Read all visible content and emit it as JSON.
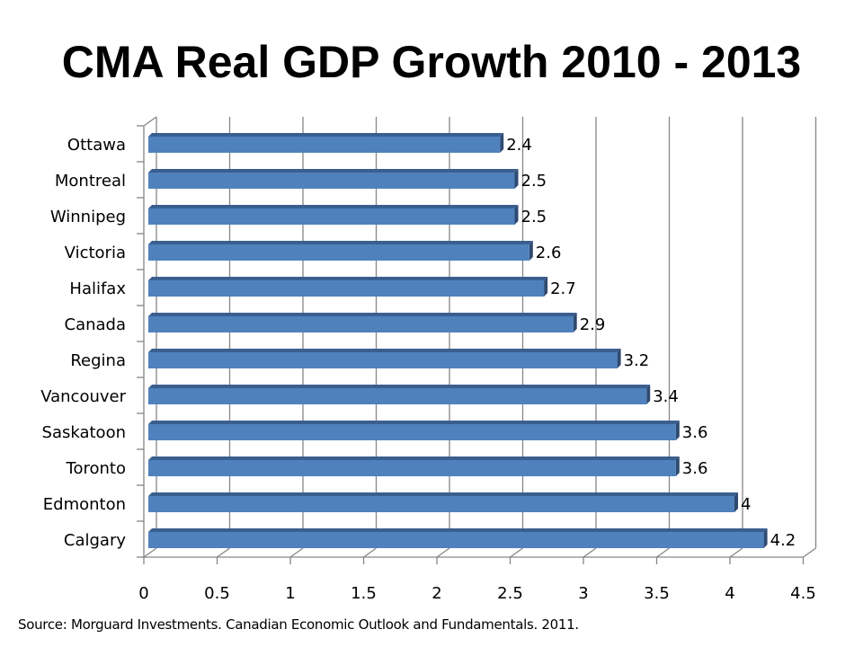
{
  "chart_data": {
    "type": "bar",
    "orientation": "horizontal",
    "style": "3d",
    "title": "CMA Real GDP Growth 2010 - 2013",
    "categories": [
      "Ottawa",
      "Montreal",
      "Winnipeg",
      "Victoria",
      "Halifax",
      "Canada",
      "Regina",
      "Vancouver",
      "Saskatoon",
      "Toronto",
      "Edmonton",
      "Calgary"
    ],
    "values": [
      2.4,
      2.5,
      2.5,
      2.6,
      2.7,
      2.9,
      3.2,
      3.4,
      3.6,
      3.6,
      4,
      4.2
    ],
    "data_labels": [
      "2.4",
      "2.5",
      "2.5",
      "2.6",
      "2.7",
      "2.9",
      "3.2",
      "3.4",
      "3.6",
      "3.6",
      "4",
      "4.2"
    ],
    "xlim": [
      0,
      4.5
    ],
    "xticks": [
      "0",
      "0.5",
      "1",
      "1.5",
      "2",
      "2.5",
      "3",
      "3.5",
      "4",
      "4.5"
    ],
    "xlabel": "",
    "ylabel": "",
    "grid": true,
    "legend": "none",
    "colors": {
      "bar": "#4F81BD",
      "bar_top": "#3A5F8F",
      "bar_side": "#2E4A70",
      "grid": "#868686"
    }
  },
  "source": "Source: Morguard Investments. Canadian Economic Outlook and Fundamentals. 2011."
}
